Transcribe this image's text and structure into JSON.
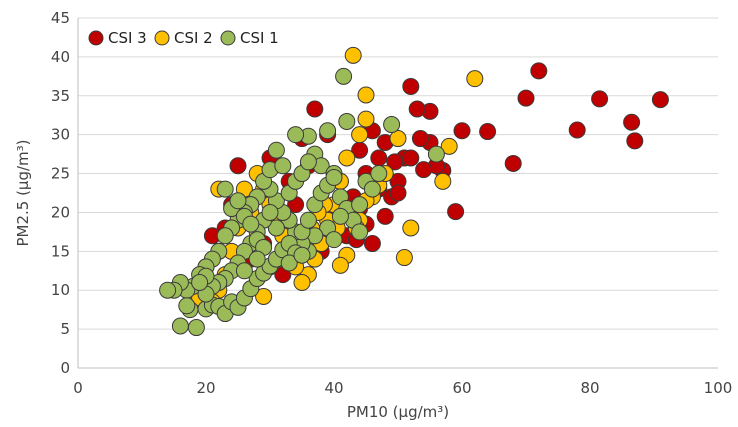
{
  "chart_data": {
    "type": "scatter",
    "xlabel": "PM10 (µg/m³)",
    "ylabel": "PM2.5 (µg/m³)",
    "xlim": [
      0,
      100
    ],
    "ylim": [
      0,
      45
    ],
    "x_ticks": [
      "0",
      "20",
      "40",
      "60",
      "80",
      "100"
    ],
    "y_ticks": [
      "0",
      "5",
      "10",
      "15",
      "20",
      "25",
      "30",
      "35",
      "40",
      "45"
    ],
    "grid": "horizontal",
    "legend_position": "top-left",
    "series": [
      {
        "name": "CSI 3",
        "color": "#c00000",
        "points": [
          [
            91,
            34.5
          ],
          [
            86.5,
            31.6
          ],
          [
            87,
            29.2
          ],
          [
            81.5,
            34.6
          ],
          [
            78,
            30.6
          ],
          [
            72,
            38.2
          ],
          [
            70,
            34.7
          ],
          [
            68,
            26.3
          ],
          [
            64,
            30.4
          ],
          [
            60,
            30.5
          ],
          [
            59,
            20.1
          ],
          [
            57,
            25.4
          ],
          [
            56,
            26
          ],
          [
            55,
            29
          ],
          [
            55,
            33
          ],
          [
            53,
            33.3
          ],
          [
            52,
            36.2
          ],
          [
            51,
            27
          ],
          [
            50,
            24
          ],
          [
            49,
            22
          ],
          [
            48,
            29
          ],
          [
            47,
            27
          ],
          [
            46,
            30.5
          ],
          [
            45,
            25
          ],
          [
            44,
            28
          ],
          [
            43,
            22
          ],
          [
            42,
            17
          ],
          [
            41,
            24
          ],
          [
            40,
            20
          ],
          [
            39,
            30
          ],
          [
            38,
            15
          ],
          [
            37,
            33.3
          ],
          [
            36,
            26
          ],
          [
            35,
            29.5
          ],
          [
            34,
            21
          ],
          [
            33,
            24
          ],
          [
            32,
            12
          ],
          [
            31,
            18
          ],
          [
            30,
            13
          ],
          [
            30,
            27
          ],
          [
            29,
            16
          ],
          [
            28,
            22
          ],
          [
            27,
            14
          ],
          [
            26,
            20
          ],
          [
            25,
            26
          ],
          [
            24,
            21
          ],
          [
            23,
            18
          ],
          [
            22,
            15
          ],
          [
            21,
            17
          ],
          [
            20,
            13
          ],
          [
            48,
            19.5
          ],
          [
            50,
            22.5
          ],
          [
            46,
            16
          ],
          [
            44,
            20.5
          ],
          [
            52,
            27
          ],
          [
            53.5,
            29.5
          ],
          [
            49.5,
            26.5
          ],
          [
            47,
            23
          ],
          [
            43.5,
            16.5
          ],
          [
            45,
            18.5
          ],
          [
            54,
            25.5
          ]
        ]
      },
      {
        "name": "CSI 2",
        "color": "#ffc000",
        "points": [
          [
            43,
            40.2
          ],
          [
            62,
            37.2
          ],
          [
            45,
            35.1
          ],
          [
            45,
            32
          ],
          [
            44,
            30
          ],
          [
            42,
            27
          ],
          [
            41,
            24
          ],
          [
            40,
            21
          ],
          [
            39,
            19
          ],
          [
            38,
            16
          ],
          [
            37,
            14
          ],
          [
            36,
            12
          ],
          [
            35,
            11
          ],
          [
            34,
            13
          ],
          [
            33,
            15
          ],
          [
            32,
            17
          ],
          [
            31,
            19
          ],
          [
            30,
            21
          ],
          [
            29,
            23
          ],
          [
            28,
            25
          ],
          [
            27,
            20
          ],
          [
            26,
            23
          ],
          [
            25,
            18
          ],
          [
            24,
            15
          ],
          [
            23,
            12
          ],
          [
            22,
            10
          ],
          [
            21,
            8.5
          ],
          [
            20,
            10
          ],
          [
            19,
            9
          ],
          [
            22,
            23
          ],
          [
            29,
            9.2
          ],
          [
            47,
            23.5
          ],
          [
            48,
            25
          ],
          [
            46,
            22
          ],
          [
            44,
            19
          ],
          [
            42,
            14.5
          ],
          [
            41,
            13.2
          ],
          [
            50,
            29.5
          ],
          [
            52,
            18
          ],
          [
            51,
            14.2
          ],
          [
            57,
            24
          ],
          [
            58,
            28.5
          ],
          [
            45,
            21.5
          ],
          [
            43.5,
            18
          ],
          [
            40.5,
            18
          ],
          [
            38.5,
            21
          ],
          [
            37.5,
            20
          ],
          [
            36.5,
            18
          ]
        ]
      },
      {
        "name": "CSI 1",
        "color": "#9bbb59",
        "points": [
          [
            41.5,
            37.5
          ],
          [
            42,
            31.7
          ],
          [
            49,
            31.3
          ],
          [
            56,
            27.5
          ],
          [
            39,
            30.5
          ],
          [
            36,
            29.8
          ],
          [
            34,
            30
          ],
          [
            31,
            28
          ],
          [
            37,
            27.5
          ],
          [
            38,
            26
          ],
          [
            40,
            25
          ],
          [
            41,
            22
          ],
          [
            42,
            20.5
          ],
          [
            43,
            19
          ],
          [
            44,
            17.5
          ],
          [
            39,
            18
          ],
          [
            40,
            16.5
          ],
          [
            37,
            17
          ],
          [
            36,
            15
          ],
          [
            35,
            16
          ],
          [
            34,
            17.5
          ],
          [
            33,
            19
          ],
          [
            32,
            20
          ],
          [
            31,
            21.5
          ],
          [
            30,
            23
          ],
          [
            29,
            24
          ],
          [
            28,
            22
          ],
          [
            27,
            21
          ],
          [
            26,
            20
          ],
          [
            25,
            19
          ],
          [
            24,
            18
          ],
          [
            23,
            17
          ],
          [
            22,
            15
          ],
          [
            21,
            14
          ],
          [
            20,
            13
          ],
          [
            19,
            12
          ],
          [
            18,
            10.5
          ],
          [
            17,
            10
          ],
          [
            16,
            11
          ],
          [
            15,
            10
          ],
          [
            14,
            10
          ],
          [
            16,
            5.4
          ],
          [
            17.5,
            7.5
          ],
          [
            18.5,
            5.2
          ],
          [
            20,
            7.6
          ],
          [
            21,
            8.1
          ],
          [
            22,
            7.9
          ],
          [
            23,
            7
          ],
          [
            24,
            8.5
          ],
          [
            25,
            7.8
          ],
          [
            26,
            9
          ],
          [
            27,
            10.2
          ],
          [
            28,
            11.5
          ],
          [
            29,
            12.2
          ],
          [
            30,
            13.1
          ],
          [
            31,
            14
          ],
          [
            32,
            15.2
          ],
          [
            33,
            16
          ],
          [
            34,
            14.8
          ],
          [
            35,
            17.5
          ],
          [
            36,
            19
          ],
          [
            37,
            21
          ],
          [
            38,
            22.5
          ],
          [
            39,
            23.5
          ],
          [
            40,
            24.5
          ],
          [
            30,
            25.5
          ],
          [
            31,
            18
          ],
          [
            29,
            19
          ],
          [
            28,
            17.5
          ],
          [
            27,
            16
          ],
          [
            26,
            15
          ],
          [
            25,
            13.5
          ],
          [
            24,
            12.5
          ],
          [
            23,
            11.5
          ],
          [
            22,
            11
          ],
          [
            21,
            10.5
          ],
          [
            20,
            11.8
          ],
          [
            24,
            20.5
          ],
          [
            25,
            21.5
          ],
          [
            26,
            19.5
          ],
          [
            27,
            18.5
          ],
          [
            28,
            16.5
          ],
          [
            29,
            15.5
          ],
          [
            33,
            22.5
          ],
          [
            34,
            24
          ],
          [
            35,
            25
          ],
          [
            36,
            26.5
          ],
          [
            45,
            24
          ],
          [
            47,
            25
          ],
          [
            46,
            23
          ],
          [
            44,
            21
          ],
          [
            41,
            19.5
          ],
          [
            23,
            23
          ],
          [
            32,
            26
          ],
          [
            30,
            20
          ],
          [
            28,
            14
          ],
          [
            26,
            12.5
          ],
          [
            20,
            9.5
          ],
          [
            19,
            11
          ],
          [
            17,
            8
          ],
          [
            33,
            13.5
          ],
          [
            35,
            14.5
          ]
        ]
      }
    ]
  }
}
